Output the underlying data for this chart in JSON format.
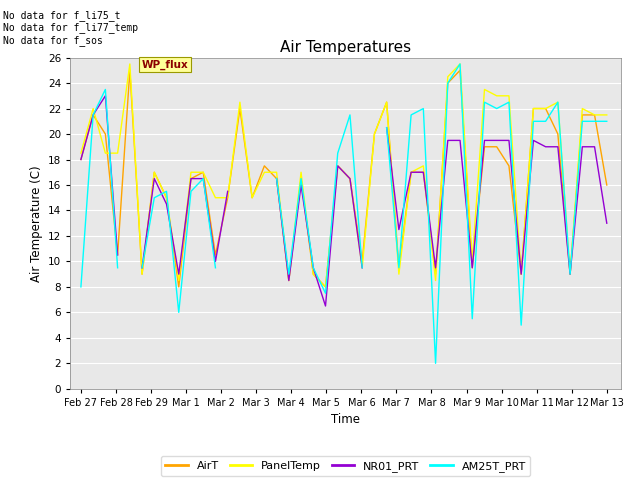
{
  "title": "Air Temperatures",
  "ylabel": "Air Temperature (C)",
  "xlabel": "Time",
  "annotations": [
    "No data for f_li75_t",
    "No data for f_li77_temp",
    "No data for f_sos"
  ],
  "wp_flux_label": "WP_flux",
  "ylim": [
    0,
    26
  ],
  "yticks": [
    0,
    2,
    4,
    6,
    8,
    10,
    12,
    14,
    16,
    18,
    20,
    22,
    24,
    26
  ],
  "xtick_labels": [
    "Feb 27",
    "Feb 28",
    "Feb 29",
    "Mar 1",
    "Mar 2",
    "Mar 3",
    "Mar 4",
    "Mar 5",
    "Mar 6",
    "Mar 7",
    "Mar 8",
    "Mar 9",
    "Mar 10",
    "Mar 11",
    "Mar 12",
    "Mar 13"
  ],
  "bg_color": "#e8e8e8",
  "fig_bg_color": "#ffffff",
  "colors": {
    "AirT": "#ffa500",
    "PanelTemp": "#ffff00",
    "NR01_PRT": "#9400d3",
    "AM25T_PRT": "#00ffff"
  },
  "linewidth": 1.0,
  "AirT": [
    18.0,
    21.5,
    20.0,
    10.5,
    25.0,
    9.0,
    17.0,
    15.0,
    8.0,
    16.5,
    17.0,
    10.5,
    15.0,
    22.0,
    15.0,
    17.5,
    16.5,
    8.5,
    16.5,
    9.0,
    8.0,
    17.5,
    16.5,
    10.0,
    20.0,
    22.5,
    9.5,
    17.0,
    17.0,
    9.0,
    24.0,
    25.0,
    9.5,
    19.0,
    19.0,
    17.5,
    9.0,
    22.0,
    22.0,
    20.0,
    9.0,
    21.5,
    21.5,
    16.0
  ],
  "PanelTemp": [
    18.5,
    22.0,
    18.5,
    18.5,
    25.5,
    9.0,
    17.0,
    15.0,
    8.5,
    17.0,
    17.0,
    15.0,
    15.0,
    22.5,
    15.0,
    17.0,
    17.0,
    8.5,
    17.0,
    9.0,
    8.0,
    17.5,
    16.5,
    9.5,
    20.0,
    22.5,
    9.0,
    17.0,
    17.5,
    8.5,
    24.5,
    25.5,
    10.0,
    23.5,
    23.0,
    23.0,
    9.0,
    22.0,
    22.0,
    22.5,
    9.0,
    22.0,
    21.5,
    21.5
  ],
  "NR01_PRT": [
    18.0,
    21.5,
    23.0,
    10.5,
    null,
    9.5,
    16.5,
    14.5,
    9.0,
    16.5,
    16.5,
    10.0,
    15.5,
    null,
    15.5,
    null,
    16.5,
    8.5,
    16.0,
    9.5,
    6.5,
    17.5,
    16.5,
    9.5,
    null,
    20.5,
    12.5,
    17.0,
    17.0,
    9.5,
    19.5,
    19.5,
    9.5,
    19.5,
    19.5,
    19.5,
    9.0,
    19.5,
    19.0,
    19.0,
    9.0,
    19.0,
    19.0,
    13.0
  ],
  "AM25T_PRT": [
    8.0,
    21.5,
    23.5,
    9.5,
    null,
    9.5,
    15.0,
    15.5,
    6.0,
    15.5,
    16.5,
    9.5,
    null,
    null,
    16.5,
    null,
    16.5,
    9.0,
    16.5,
    9.5,
    7.5,
    18.5,
    21.5,
    9.5,
    null,
    20.5,
    9.5,
    21.5,
    22.0,
    2.0,
    24.0,
    25.5,
    5.5,
    22.5,
    22.0,
    22.5,
    5.0,
    21.0,
    21.0,
    22.5,
    9.0,
    21.0,
    21.0,
    21.0
  ]
}
